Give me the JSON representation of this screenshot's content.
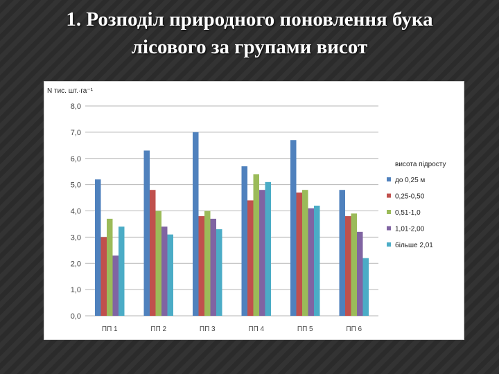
{
  "slide": {
    "title_line1": "1. Розподіл природного поновлення бука",
    "title_line2": "лісового за групами висот"
  },
  "chart_data": {
    "type": "bar",
    "ylabel": "N тис. шт.·га⁻¹",
    "ylim": [
      0,
      8
    ],
    "yticks": [
      "0,0",
      "1,0",
      "2,0",
      "3,0",
      "4,0",
      "5,0",
      "6,0",
      "7,0",
      "8,0"
    ],
    "categories": [
      "ПП 1",
      "ПП 2",
      "ПП 3",
      "ПП 4",
      "ПП 5",
      "ПП 6"
    ],
    "legend_title": "висота підросту",
    "legend_position": "right",
    "grid": true,
    "series": [
      {
        "name": "до 0,25 м",
        "color": "#4f81bd",
        "values": [
          5.2,
          6.3,
          7.0,
          5.7,
          6.7,
          4.8
        ]
      },
      {
        "name": "0,25-0,50",
        "color": "#c0504d",
        "values": [
          3.0,
          4.8,
          3.8,
          4.4,
          4.7,
          3.8
        ]
      },
      {
        "name": "0,51-1,0",
        "color": "#9bbb59",
        "values": [
          3.7,
          4.0,
          4.0,
          5.4,
          4.8,
          3.9
        ]
      },
      {
        "name": "1,01-2,00",
        "color": "#8064a2",
        "values": [
          2.3,
          3.4,
          3.7,
          4.8,
          4.1,
          3.2
        ]
      },
      {
        "name": "більше 2,01",
        "color": "#4bacc6",
        "values": [
          3.4,
          3.1,
          3.3,
          5.1,
          4.2,
          2.2
        ]
      }
    ]
  }
}
